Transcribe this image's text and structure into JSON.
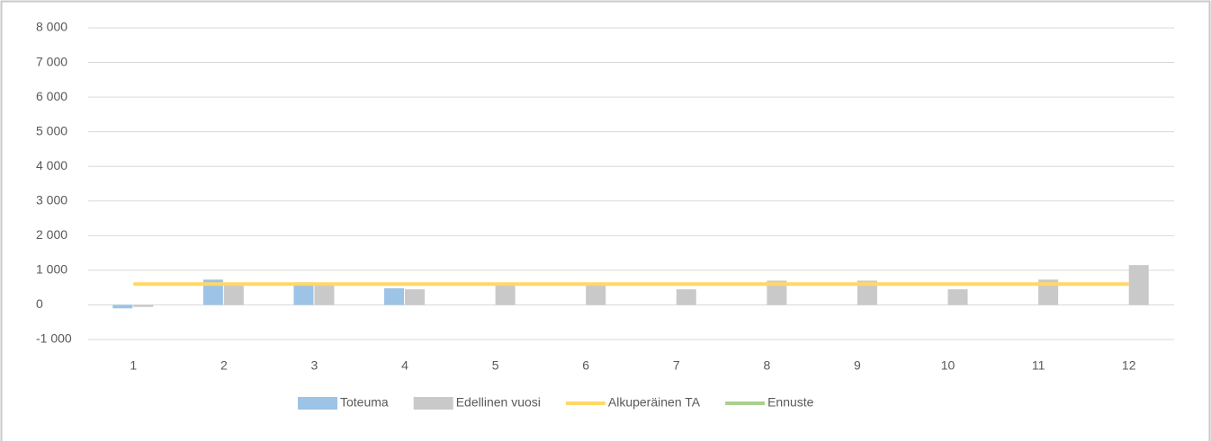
{
  "chart_data": {
    "type": "bar",
    "categories": [
      "1",
      "2",
      "3",
      "4",
      "5",
      "6",
      "7",
      "8",
      "9",
      "10",
      "11",
      "12"
    ],
    "series": [
      {
        "name": "Toteuma",
        "type": "bar",
        "color": "#9dc3e6",
        "values": [
          -100,
          730,
          650,
          480,
          null,
          null,
          null,
          null,
          null,
          null,
          null,
          null
        ]
      },
      {
        "name": "Edellinen vuosi",
        "type": "bar",
        "color": "#c9c9c9",
        "values": [
          -60,
          600,
          600,
          450,
          600,
          600,
          450,
          700,
          700,
          450,
          730,
          1150
        ]
      },
      {
        "name": "Alkuperäinen TA",
        "type": "line",
        "color": "#ffd966",
        "values": [
          600,
          600,
          600,
          600,
          600,
          600,
          600,
          600,
          600,
          600,
          600,
          600
        ]
      },
      {
        "name": "Ennuste",
        "type": "line",
        "color": "#a9d18e",
        "values": [
          null,
          null,
          null,
          null,
          null,
          null,
          null,
          null,
          null,
          null,
          null,
          null
        ]
      }
    ],
    "ylim": [
      -1000,
      8000
    ],
    "yticks": [
      {
        "value": -1000,
        "label": "-1 000"
      },
      0,
      {
        "value": 1000,
        "label": "1 000"
      },
      {
        "value": 2000,
        "label": "2 000"
      },
      {
        "value": 3000,
        "label": "3 000"
      },
      {
        "value": 4000,
        "label": "4 000"
      },
      {
        "value": 5000,
        "label": "5 000"
      },
      {
        "value": 6000,
        "label": "6 000"
      },
      {
        "value": 7000,
        "label": "7 000"
      },
      {
        "value": 8000,
        "label": "8 000"
      }
    ],
    "grid": true,
    "legend": "bottom"
  }
}
